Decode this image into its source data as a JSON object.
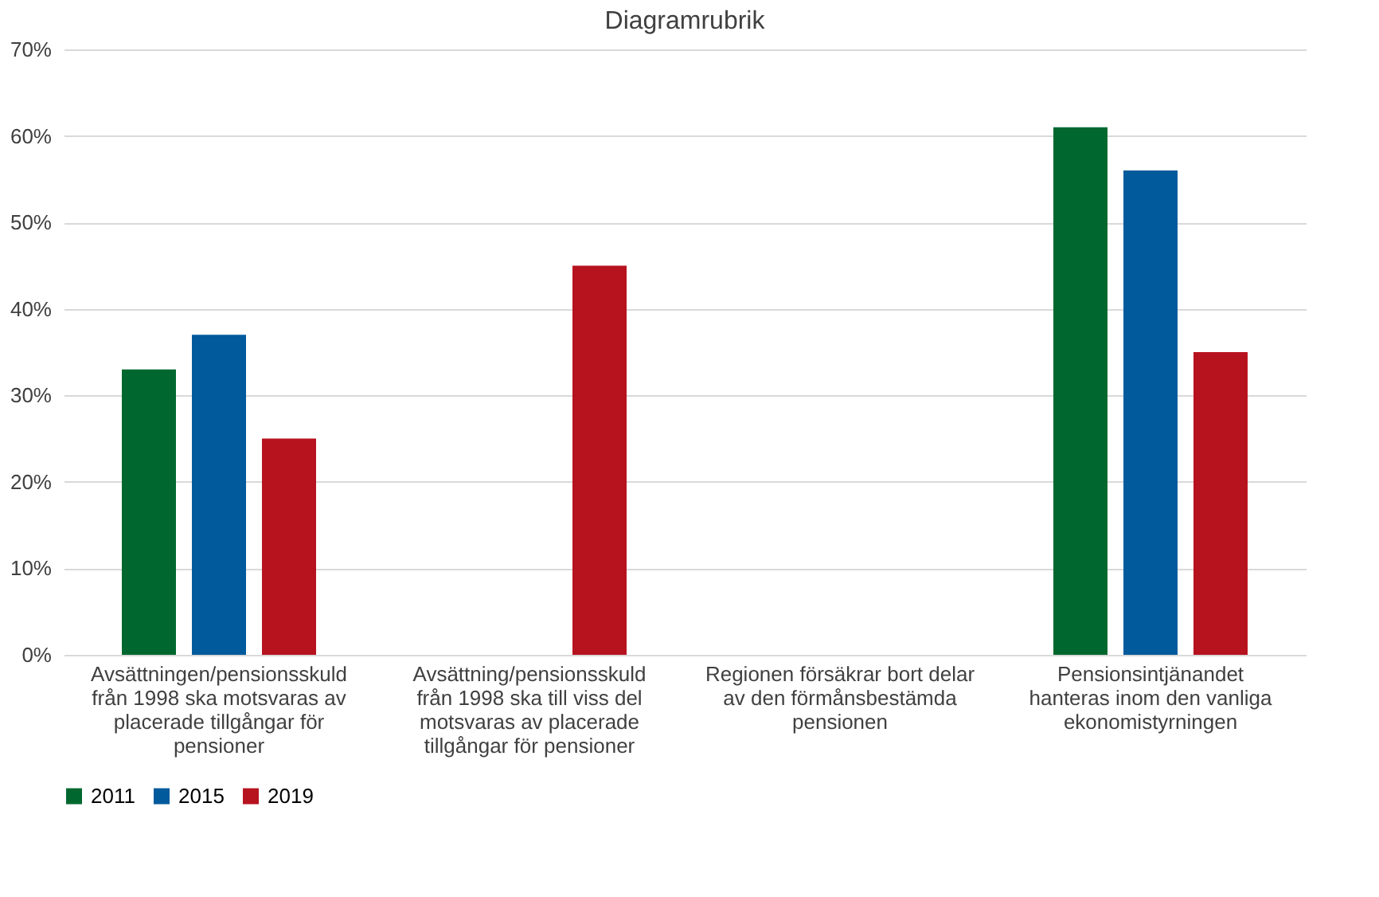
{
  "chart_data": {
    "type": "bar",
    "title": "Diagramrubrik",
    "categories": [
      "Avsättningen/pensionsskuld\nfrån 1998 ska motsvaras av\nplacerade tillgångar för\npensioner",
      "Avsättning/pensionsskuld\nfrån 1998 ska till viss del\nmotsvaras av placerade\ntillgångar för pensioner",
      "Regionen försäkrar bort delar\nav den förmånsbestämda\npensionen",
      "Pensionsintjänandet\nhanteras inom den vanliga\nekonomistyrningen"
    ],
    "series": [
      {
        "name": "2011",
        "color": "#00682f",
        "values": [
          33,
          null,
          null,
          61
        ]
      },
      {
        "name": "2015",
        "color": "#005a9c",
        "values": [
          37,
          null,
          null,
          56
        ]
      },
      {
        "name": "2019",
        "color": "#b7131f",
        "values": [
          25,
          45,
          null,
          35
        ]
      }
    ],
    "ylim": [
      0,
      70
    ],
    "yticks": [
      {
        "value": 0,
        "label": "0%"
      },
      {
        "value": 10,
        "label": "10%"
      },
      {
        "value": 20,
        "label": "20%"
      },
      {
        "value": 30,
        "label": "30%"
      },
      {
        "value": 40,
        "label": "40%"
      },
      {
        "value": 50,
        "label": "50%"
      },
      {
        "value": 60,
        "label": "60%"
      },
      {
        "value": 70,
        "label": "70%"
      }
    ],
    "grid": "y",
    "legend": "bottom"
  }
}
